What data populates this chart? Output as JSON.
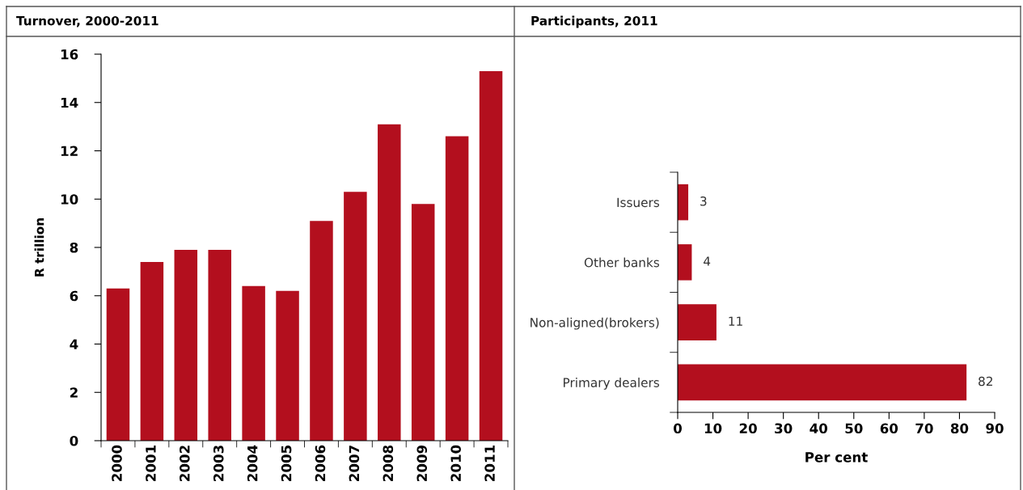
{
  "chart_data": [
    {
      "type": "bar",
      "title": "Turnover, 2000-2011",
      "ylabel": "R trillion",
      "categories": [
        "2000",
        "2001",
        "2002",
        "2003",
        "2004",
        "2005",
        "2006",
        "2007",
        "2008",
        "2009",
        "2010",
        "2011"
      ],
      "values": [
        6.3,
        7.4,
        7.9,
        7.9,
        6.4,
        6.2,
        9.1,
        10.3,
        13.1,
        9.8,
        12.6,
        15.3
      ],
      "color": "#b30f1e",
      "ylim": [
        0,
        16
      ],
      "yticks": [
        0,
        2,
        4,
        6,
        8,
        10,
        12,
        14,
        16
      ],
      "grid": false
    },
    {
      "type": "bar",
      "orientation": "horizontal",
      "title": "Participants, 2011",
      "xlabel": "Per cent",
      "categories": [
        "Issuers",
        "Other banks",
        "Non-aligned(brokers)",
        "Primary dealers"
      ],
      "values": [
        3,
        4,
        11,
        82
      ],
      "color": "#b30f1e",
      "xlim": [
        0,
        90
      ],
      "xticks": [
        0,
        10,
        20,
        30,
        40,
        50,
        60,
        70,
        80,
        90
      ],
      "data_labels": true,
      "grid": false
    }
  ]
}
